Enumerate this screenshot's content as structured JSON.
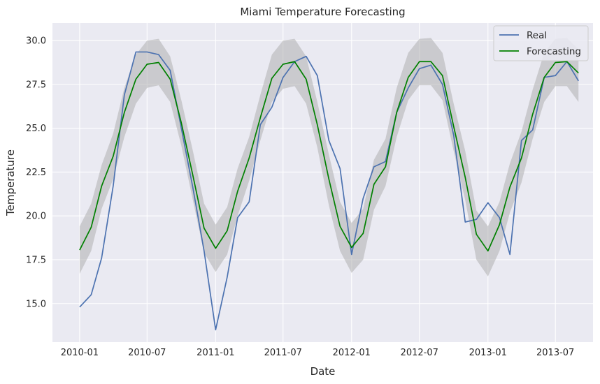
{
  "chart_data": {
    "type": "line",
    "title": "Miami Temperature Forecasting",
    "xlabel": "Date",
    "ylabel": "Temperature",
    "xlim": [
      "2009-10-20",
      "2013-10-10"
    ],
    "ylim": [
      12.8,
      31.0
    ],
    "x_ticks": [
      "2010-01",
      "2010-07",
      "2011-01",
      "2011-07",
      "2012-01",
      "2012-07",
      "2013-01",
      "2013-07"
    ],
    "y_ticks": [
      15.0,
      17.5,
      20.0,
      22.5,
      25.0,
      27.5,
      30.0
    ],
    "y_tick_labels": [
      "15.0",
      "17.5",
      "20.0",
      "22.5",
      "25.0",
      "27.5",
      "30.0"
    ],
    "grid": true,
    "legend_position": "top-right",
    "dates": [
      "2010-01",
      "2010-02",
      "2010-03",
      "2010-04",
      "2010-05",
      "2010-06",
      "2010-07",
      "2010-08",
      "2010-09",
      "2010-10",
      "2010-11",
      "2010-12",
      "2011-01",
      "2011-02",
      "2011-03",
      "2011-04",
      "2011-05",
      "2011-06",
      "2011-07",
      "2011-08",
      "2011-09",
      "2011-10",
      "2011-11",
      "2011-12",
      "2012-01",
      "2012-02",
      "2012-03",
      "2012-04",
      "2012-05",
      "2012-06",
      "2012-07",
      "2012-08",
      "2012-09",
      "2012-10",
      "2012-11",
      "2012-12",
      "2013-01",
      "2013-02",
      "2013-03",
      "2013-04",
      "2013-05",
      "2013-06",
      "2013-07",
      "2013-08",
      "2013-09"
    ],
    "series": [
      {
        "name": "Real",
        "color": "#4c72b0",
        "values": [
          14.8,
          15.5,
          17.6,
          21.7,
          26.9,
          29.35,
          29.35,
          29.2,
          28.3,
          25.0,
          21.6,
          18.0,
          13.5,
          16.5,
          19.9,
          20.8,
          25.2,
          26.2,
          27.9,
          28.8,
          29.1,
          28.0,
          24.3,
          22.7,
          17.8,
          21.0,
          22.8,
          23.1,
          25.9,
          27.3,
          28.4,
          28.6,
          27.5,
          24.6,
          19.65,
          19.8,
          20.75,
          19.9,
          17.8,
          24.3,
          24.9,
          27.9,
          28.0,
          28.8,
          27.7
        ]
      },
      {
        "name": "Forecasting",
        "color": "#008000",
        "values": [
          18.05,
          19.35,
          21.7,
          23.4,
          25.9,
          27.8,
          28.65,
          28.75,
          27.8,
          25.3,
          22.3,
          19.3,
          18.15,
          19.15,
          21.4,
          23.3,
          25.6,
          27.85,
          28.65,
          28.8,
          27.8,
          25.2,
          22.1,
          19.4,
          18.2,
          19.0,
          21.8,
          22.8,
          25.9,
          27.9,
          28.8,
          28.8,
          28.0,
          25.1,
          22.2,
          18.95,
          18.0,
          19.5,
          21.65,
          23.3,
          25.8,
          27.9,
          28.75,
          28.8,
          28.15
        ]
      }
    ],
    "confidence_band": {
      "color": "#a9a9a9",
      "lower": [
        16.7,
        18.0,
        20.4,
        22.1,
        24.5,
        26.4,
        27.3,
        27.45,
        26.5,
        24.0,
        20.9,
        17.9,
        16.8,
        17.8,
        20.0,
        22.0,
        24.3,
        26.5,
        27.25,
        27.4,
        26.4,
        23.9,
        20.6,
        18.0,
        16.75,
        17.5,
        20.35,
        21.7,
        24.5,
        26.6,
        27.45,
        27.45,
        26.6,
        23.7,
        20.9,
        17.5,
        16.55,
        18.0,
        20.2,
        21.9,
        24.4,
        26.5,
        27.4,
        27.4,
        26.5
      ],
      "upper": [
        19.4,
        20.7,
        22.9,
        24.7,
        27.3,
        29.2,
        30.0,
        30.1,
        29.1,
        26.6,
        23.7,
        20.7,
        19.5,
        20.5,
        22.7,
        24.5,
        26.9,
        29.2,
        30.0,
        30.1,
        29.1,
        26.5,
        23.5,
        20.8,
        19.6,
        20.4,
        23.2,
        24.4,
        27.3,
        29.3,
        30.1,
        30.15,
        29.3,
        26.4,
        23.7,
        20.3,
        19.4,
        20.8,
        23.0,
        24.8,
        27.2,
        29.3,
        30.1,
        30.15,
        29.5
      ]
    }
  }
}
